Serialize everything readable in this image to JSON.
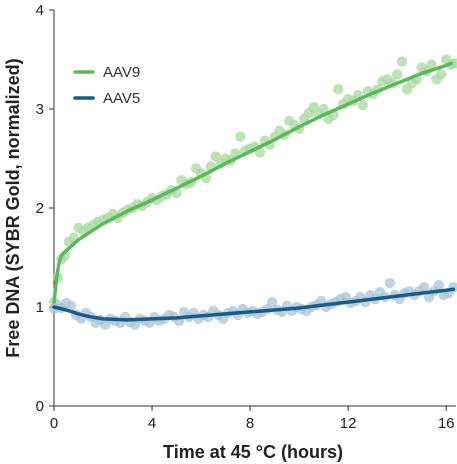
{
  "chart_data": {
    "type": "scatter",
    "xlabel": "Time at 45 °C (hours)",
    "ylabel": "Free DNA (SYBR Gold, normalized)",
    "xlim": [
      0,
      16.4
    ],
    "ylim": [
      0,
      4
    ],
    "xticks": [
      0,
      4,
      8,
      12,
      16
    ],
    "yticks": [
      0,
      1,
      2,
      3,
      4
    ],
    "grid": false,
    "legend_position": "top-left",
    "series": [
      {
        "name": "AAV9",
        "color": "#5cb85c",
        "point_color": "#a8d8a0",
        "points": [
          [
            0.0,
            1.05
          ],
          [
            0.15,
            1.3
          ],
          [
            0.3,
            1.48
          ],
          [
            0.45,
            1.52
          ],
          [
            0.6,
            1.66
          ],
          [
            0.8,
            1.7
          ],
          [
            1.0,
            1.8
          ],
          [
            1.2,
            1.77
          ],
          [
            1.4,
            1.8
          ],
          [
            1.6,
            1.83
          ],
          [
            1.8,
            1.86
          ],
          [
            2.0,
            1.88
          ],
          [
            2.2,
            1.9
          ],
          [
            2.4,
            1.94
          ],
          [
            2.6,
            1.9
          ],
          [
            2.8,
            1.95
          ],
          [
            3.0,
            1.98
          ],
          [
            3.2,
            2.0
          ],
          [
            3.4,
            2.04
          ],
          [
            3.6,
            2.02
          ],
          [
            3.8,
            2.06
          ],
          [
            4.0,
            2.1
          ],
          [
            4.2,
            2.08
          ],
          [
            4.4,
            2.12
          ],
          [
            4.6,
            2.14
          ],
          [
            4.8,
            2.18
          ],
          [
            5.0,
            2.15
          ],
          [
            5.2,
            2.28
          ],
          [
            5.4,
            2.24
          ],
          [
            5.6,
            2.26
          ],
          [
            5.8,
            2.4
          ],
          [
            6.0,
            2.35
          ],
          [
            6.2,
            2.3
          ],
          [
            6.4,
            2.42
          ],
          [
            6.6,
            2.52
          ],
          [
            6.8,
            2.45
          ],
          [
            7.0,
            2.5
          ],
          [
            7.2,
            2.48
          ],
          [
            7.4,
            2.55
          ],
          [
            7.6,
            2.72
          ],
          [
            7.8,
            2.58
          ],
          [
            8.0,
            2.6
          ],
          [
            8.2,
            2.62
          ],
          [
            8.4,
            2.56
          ],
          [
            8.6,
            2.68
          ],
          [
            8.8,
            2.64
          ],
          [
            9.0,
            2.72
          ],
          [
            9.2,
            2.78
          ],
          [
            9.4,
            2.74
          ],
          [
            9.6,
            2.88
          ],
          [
            9.8,
            2.84
          ],
          [
            10.0,
            2.8
          ],
          [
            10.2,
            2.9
          ],
          [
            10.4,
            2.96
          ],
          [
            10.6,
            3.02
          ],
          [
            10.8,
            2.95
          ],
          [
            11.0,
            3.0
          ],
          [
            11.2,
            2.9
          ],
          [
            11.4,
            2.94
          ],
          [
            11.6,
            3.2
          ],
          [
            11.8,
            3.05
          ],
          [
            12.0,
            3.1
          ],
          [
            12.2,
            3.08
          ],
          [
            12.4,
            3.14
          ],
          [
            12.6,
            3.04
          ],
          [
            12.8,
            3.18
          ],
          [
            13.0,
            3.15
          ],
          [
            13.2,
            3.2
          ],
          [
            13.4,
            3.28
          ],
          [
            13.6,
            3.3
          ],
          [
            13.8,
            3.26
          ],
          [
            14.0,
            3.35
          ],
          [
            14.2,
            3.48
          ],
          [
            14.4,
            3.2
          ],
          [
            14.6,
            3.26
          ],
          [
            14.8,
            3.3
          ],
          [
            15.0,
            3.42
          ],
          [
            15.2,
            3.38
          ],
          [
            15.4,
            3.45
          ],
          [
            15.6,
            3.3
          ],
          [
            15.8,
            3.35
          ],
          [
            16.0,
            3.5
          ],
          [
            16.2,
            3.45
          ],
          [
            16.35,
            3.46
          ]
        ],
        "curve": [
          [
            0.0,
            1.05
          ],
          [
            0.1,
            1.28
          ],
          [
            0.2,
            1.44
          ],
          [
            0.3,
            1.52
          ],
          [
            0.5,
            1.57
          ],
          [
            1.0,
            1.68
          ],
          [
            2.0,
            1.84
          ],
          [
            3.0,
            1.97
          ],
          [
            4.0,
            2.08
          ],
          [
            5.0,
            2.2
          ],
          [
            6.0,
            2.32
          ],
          [
            7.0,
            2.45
          ],
          [
            8.0,
            2.57
          ],
          [
            9.0,
            2.69
          ],
          [
            10.0,
            2.82
          ],
          [
            11.0,
            2.94
          ],
          [
            12.0,
            3.05
          ],
          [
            13.0,
            3.16
          ],
          [
            14.0,
            3.26
          ],
          [
            15.0,
            3.36
          ],
          [
            16.0,
            3.44
          ],
          [
            16.2,
            3.46
          ]
        ]
      },
      {
        "name": "AAV5",
        "color": "#1a5c86",
        "point_color": "#a9c4d8",
        "points": [
          [
            0.0,
            0.98
          ],
          [
            0.15,
            1.02
          ],
          [
            0.3,
            0.99
          ],
          [
            0.5,
            1.04
          ],
          [
            0.7,
            1.01
          ],
          [
            0.9,
            0.92
          ],
          [
            1.1,
            0.88
          ],
          [
            1.3,
            0.94
          ],
          [
            1.5,
            0.9
          ],
          [
            1.7,
            0.84
          ],
          [
            1.9,
            0.87
          ],
          [
            2.1,
            0.82
          ],
          [
            2.3,
            0.88
          ],
          [
            2.5,
            0.86
          ],
          [
            2.7,
            0.84
          ],
          [
            2.9,
            0.9
          ],
          [
            3.1,
            0.85
          ],
          [
            3.3,
            0.82
          ],
          [
            3.5,
            0.88
          ],
          [
            3.7,
            0.86
          ],
          [
            3.9,
            0.84
          ],
          [
            4.1,
            0.9
          ],
          [
            4.3,
            0.86
          ],
          [
            4.5,
            0.88
          ],
          [
            4.7,
            0.92
          ],
          [
            4.9,
            0.9
          ],
          [
            5.1,
            0.86
          ],
          [
            5.3,
            0.95
          ],
          [
            5.5,
            0.9
          ],
          [
            5.7,
            0.94
          ],
          [
            5.9,
            0.88
          ],
          [
            6.1,
            0.92
          ],
          [
            6.3,
            0.9
          ],
          [
            6.5,
            0.96
          ],
          [
            6.7,
            0.92
          ],
          [
            6.9,
            0.88
          ],
          [
            7.1,
            0.94
          ],
          [
            7.3,
            0.96
          ],
          [
            7.5,
            0.92
          ],
          [
            7.7,
            0.98
          ],
          [
            7.9,
            0.94
          ],
          [
            8.1,
            0.96
          ],
          [
            8.3,
            0.93
          ],
          [
            8.5,
            0.95
          ],
          [
            8.7,
            0.98
          ],
          [
            8.9,
            1.05
          ],
          [
            9.1,
            0.97
          ],
          [
            9.3,
            0.95
          ],
          [
            9.5,
            1.01
          ],
          [
            9.7,
            0.96
          ],
          [
            9.9,
            1.0
          ],
          [
            10.1,
            0.98
          ],
          [
            10.3,
            0.96
          ],
          [
            10.5,
            1.0
          ],
          [
            10.7,
            1.02
          ],
          [
            10.9,
            1.06
          ],
          [
            11.1,
            1.0
          ],
          [
            11.3,
            1.03
          ],
          [
            11.5,
            1.05
          ],
          [
            11.7,
            1.08
          ],
          [
            11.9,
            1.1
          ],
          [
            12.1,
            1.04
          ],
          [
            12.3,
            1.06
          ],
          [
            12.5,
            1.1
          ],
          [
            12.7,
            1.05
          ],
          [
            12.9,
            1.12
          ],
          [
            13.1,
            1.08
          ],
          [
            13.3,
            1.15
          ],
          [
            13.5,
            1.1
          ],
          [
            13.7,
            1.24
          ],
          [
            13.9,
            1.12
          ],
          [
            14.1,
            1.08
          ],
          [
            14.3,
            1.14
          ],
          [
            14.5,
            1.16
          ],
          [
            14.7,
            1.12
          ],
          [
            14.9,
            1.16
          ],
          [
            15.1,
            1.2
          ],
          [
            15.3,
            1.1
          ],
          [
            15.5,
            1.16
          ],
          [
            15.7,
            1.22
          ],
          [
            15.9,
            1.12
          ],
          [
            16.1,
            1.14
          ],
          [
            16.3,
            1.2
          ]
        ],
        "curve": [
          [
            0.0,
            1.0
          ],
          [
            0.5,
            0.97
          ],
          [
            1.0,
            0.93
          ],
          [
            1.5,
            0.9
          ],
          [
            2.0,
            0.88
          ],
          [
            3.0,
            0.87
          ],
          [
            4.0,
            0.88
          ],
          [
            5.0,
            0.89
          ],
          [
            6.0,
            0.91
          ],
          [
            7.0,
            0.93
          ],
          [
            8.0,
            0.95
          ],
          [
            9.0,
            0.97
          ],
          [
            10.0,
            0.99
          ],
          [
            11.0,
            1.02
          ],
          [
            12.0,
            1.05
          ],
          [
            13.0,
            1.08
          ],
          [
            14.0,
            1.11
          ],
          [
            15.0,
            1.14
          ],
          [
            16.0,
            1.17
          ],
          [
            16.3,
            1.18
          ]
        ]
      }
    ]
  }
}
